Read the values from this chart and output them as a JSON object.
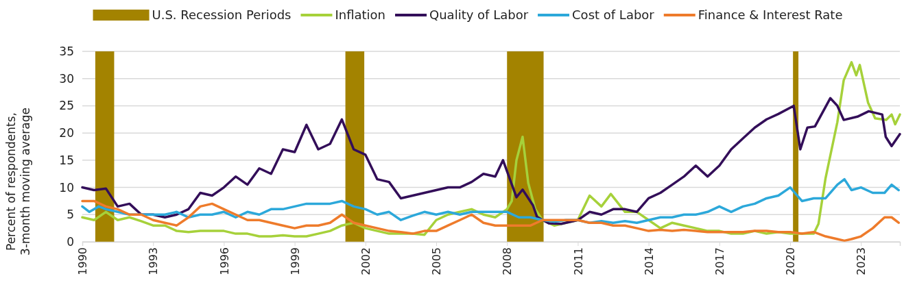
{
  "chart_data": {
    "type": "line",
    "ylabel": "Percent of respondents, 3-month moving average",
    "xlim": [
      1990,
      2024.65
    ],
    "xticks": [
      1990,
      1993,
      1996,
      1999,
      2002,
      2005,
      2008,
      2011,
      2014,
      2017,
      2020,
      2023
    ],
    "ylim": [
      0,
      35
    ],
    "yticks": [
      0,
      5,
      10,
      15,
      20,
      25,
      30,
      35
    ],
    "grid": "y",
    "legend": "top",
    "line_style": "solid",
    "marker": "none",
    "bands": [
      {
        "axis": "x",
        "from": 1990.55,
        "to": 1991.35,
        "label": "U.S. Recession Periods",
        "color": "#a38300"
      },
      {
        "axis": "x",
        "from": 2001.15,
        "to": 2001.95,
        "color": "#a38300"
      },
      {
        "axis": "x",
        "from": 2008.0,
        "to": 2009.55,
        "color": "#a38300"
      },
      {
        "axis": "x",
        "from": 2020.12,
        "to": 2020.35,
        "color": "#a38300"
      }
    ],
    "series": [
      {
        "name": "Inflation",
        "color": "#a6d13a",
        "x": [
          1990,
          1990.5,
          1991,
          1991.5,
          1992,
          1992.5,
          1993,
          1993.5,
          1994,
          1994.5,
          1995,
          1995.5,
          1996,
          1996.5,
          1997,
          1997.5,
          1998,
          1998.5,
          1999,
          1999.5,
          2000,
          2000.5,
          2001,
          2001.5,
          2002,
          2002.5,
          2003,
          2003.5,
          2004,
          2004.5,
          2005,
          2005.5,
          2006,
          2006.5,
          2007,
          2007.5,
          2008,
          2008.2,
          2008.4,
          2008.66,
          2008.9,
          2009.2,
          2009.5,
          2010,
          2010.5,
          2011,
          2011.5,
          2012,
          2012.4,
          2013,
          2013.5,
          2014,
          2014.5,
          2015,
          2015.5,
          2016,
          2016.5,
          2017,
          2017.5,
          2018,
          2018.5,
          2019,
          2019.5,
          2020,
          2020.5,
          2021,
          2021.2,
          2021.5,
          2022,
          2022.27,
          2022.6,
          2022.8,
          2022.95,
          2023.3,
          2023.6,
          2024.07,
          2024.3,
          2024.45,
          2024.65
        ],
        "values": [
          4.5,
          4,
          5.5,
          4,
          4.5,
          3.8,
          3,
          3,
          2,
          1.8,
          2,
          2,
          2,
          1.5,
          1.5,
          1,
          1,
          1.2,
          1,
          1,
          1.5,
          2,
          3,
          3.5,
          2.5,
          2,
          1.5,
          1.5,
          1.5,
          1.3,
          4,
          5,
          5.5,
          6,
          5,
          4.5,
          6,
          7.5,
          15,
          19.3,
          10.8,
          6,
          4,
          3,
          3.5,
          4,
          8.5,
          6.5,
          8.8,
          5.5,
          5.5,
          4,
          2.5,
          3.5,
          3,
          2.5,
          2,
          2,
          1.5,
          1.5,
          2,
          1.5,
          1.8,
          1.5,
          1.5,
          1.5,
          3.3,
          11.7,
          22,
          29.7,
          33,
          30.6,
          32.5,
          25.6,
          22.7,
          22.4,
          23.4,
          21.6,
          23.4
        ]
      },
      {
        "name": "Quality of Labor",
        "color": "#330e59",
        "x": [
          1990,
          1990.5,
          1991,
          1991.5,
          1992,
          1992.5,
          1993,
          1993.5,
          1994,
          1994.5,
          1995,
          1995.5,
          1996,
          1996.5,
          1997,
          1997.5,
          1998,
          1998.5,
          1999,
          1999.5,
          2000,
          2000.5,
          2001,
          2001.5,
          2002,
          2002.5,
          2003,
          2003.5,
          2004,
          2004.5,
          2005,
          2005.5,
          2006,
          2006.5,
          2007,
          2007.5,
          2007.83,
          2008.4,
          2008.66,
          2009.1,
          2009.27,
          2009.77,
          2010.3,
          2011,
          2011.5,
          2012,
          2012.5,
          2013,
          2013.5,
          2014,
          2014.5,
          2015,
          2015.5,
          2016,
          2016.5,
          2017,
          2017.5,
          2018,
          2018.5,
          2019,
          2019.5,
          2020.15,
          2020.43,
          2020.73,
          2021.05,
          2021.7,
          2022,
          2022.27,
          2022.85,
          2023.33,
          2023.9,
          2024.05,
          2024.3,
          2024.65
        ],
        "values": [
          10,
          9.5,
          9.8,
          6.5,
          7,
          5,
          5,
          4.5,
          5,
          6,
          9,
          8.5,
          10,
          12,
          10.5,
          13.5,
          12.5,
          17,
          16.5,
          21.5,
          17,
          18,
          22.5,
          17,
          16,
          11.5,
          11,
          8,
          8.5,
          9,
          9.5,
          10,
          10,
          11,
          12.5,
          12,
          15,
          8.2,
          9.6,
          6.7,
          4.6,
          3.4,
          3.3,
          4,
          5.5,
          5,
          6,
          6,
          5.5,
          8,
          9,
          10.5,
          12,
          14,
          12,
          14,
          17,
          19,
          21,
          22.5,
          23.5,
          25,
          17,
          21,
          21.2,
          26.4,
          25,
          22.4,
          23,
          24,
          23.4,
          19.3,
          17.6,
          19.8
        ]
      },
      {
        "name": "Cost of Labor",
        "color": "#2ca8da",
        "x": [
          1990,
          1990.3,
          1990.7,
          1991,
          1991.5,
          1992,
          1992.5,
          1993,
          1993.5,
          1994,
          1994.5,
          1995,
          1995.5,
          1996,
          1996.5,
          1997,
          1997.5,
          1998,
          1998.5,
          1999,
          1999.5,
          2000,
          2000.5,
          2001,
          2001.5,
          2002,
          2002.5,
          2003,
          2003.5,
          2004,
          2004.5,
          2005,
          2005.5,
          2006,
          2006.5,
          2007,
          2007.5,
          2008,
          2008.5,
          2009,
          2009.5,
          2010,
          2010.5,
          2011,
          2011.5,
          2012,
          2012.5,
          2013,
          2013.5,
          2014,
          2014.5,
          2015,
          2015.5,
          2016,
          2016.5,
          2017,
          2017.5,
          2018,
          2018.5,
          2019,
          2019.5,
          2020,
          2020.5,
          2021,
          2021.5,
          2022,
          2022.3,
          2022.6,
          2023,
          2023.5,
          2024,
          2024.3,
          2024.6
        ],
        "values": [
          6.5,
          5.5,
          6.5,
          6,
          5.5,
          5,
          5,
          5,
          5,
          5.5,
          4.5,
          5,
          5,
          5.5,
          4.5,
          5.5,
          5,
          6,
          6,
          6.5,
          7,
          7,
          7,
          7.5,
          6.5,
          6,
          5,
          5.5,
          4,
          4.8,
          5.5,
          5,
          5.5,
          5,
          5.5,
          5.5,
          5.5,
          5.5,
          4.5,
          4.5,
          4,
          3.7,
          4,
          4,
          3.5,
          3.8,
          3.5,
          3.8,
          3.5,
          4,
          4.5,
          4.5,
          5,
          5,
          5.5,
          6.5,
          5.5,
          6.5,
          7,
          8,
          8.5,
          10,
          7.5,
          8,
          8,
          10.5,
          11.5,
          9.5,
          10,
          9,
          9,
          10.5,
          9.5
        ]
      },
      {
        "name": "Finance & Interest Rate",
        "color": "#ee7b2b",
        "x": [
          1990,
          1990.5,
          1991,
          1991.5,
          1992,
          1992.5,
          1993,
          1993.5,
          1994,
          1994.5,
          1995,
          1995.5,
          1996,
          1996.5,
          1997,
          1997.5,
          1998,
          1998.5,
          1999,
          1999.5,
          2000,
          2000.5,
          2001,
          2001.5,
          2002,
          2002.5,
          2003,
          2003.5,
          2004,
          2004.5,
          2005,
          2005.5,
          2006,
          2006.5,
          2007,
          2007.5,
          2008,
          2008.5,
          2009,
          2009.5,
          2010,
          2010.5,
          2011,
          2011.5,
          2012,
          2012.5,
          2013,
          2013.5,
          2014,
          2014.5,
          2015,
          2015.5,
          2016,
          2016.5,
          2017,
          2017.5,
          2018,
          2018.5,
          2019,
          2019.5,
          2020,
          2020.5,
          2021,
          2021.5,
          2022,
          2022.3,
          2022.6,
          2023,
          2023.5,
          2024,
          2024.3,
          2024.6
        ],
        "values": [
          7.5,
          7.5,
          6.5,
          6,
          5,
          5,
          4,
          3.5,
          3,
          4.5,
          6.5,
          7,
          6,
          5,
          4,
          4,
          3.5,
          3,
          2.5,
          3,
          3,
          3.5,
          5,
          3.5,
          3,
          2.5,
          2,
          1.8,
          1.5,
          2,
          2,
          3,
          4,
          5,
          3.5,
          3,
          3,
          3,
          3,
          4,
          4,
          4,
          4,
          3.5,
          3.5,
          3,
          3,
          2.5,
          2,
          2.2,
          2,
          2.2,
          2,
          1.8,
          1.8,
          1.8,
          1.8,
          2,
          2,
          1.8,
          1.8,
          1.5,
          1.8,
          1,
          0.5,
          0.2,
          0.5,
          1,
          2.5,
          4.5,
          4.5,
          3.5
        ]
      }
    ]
  }
}
